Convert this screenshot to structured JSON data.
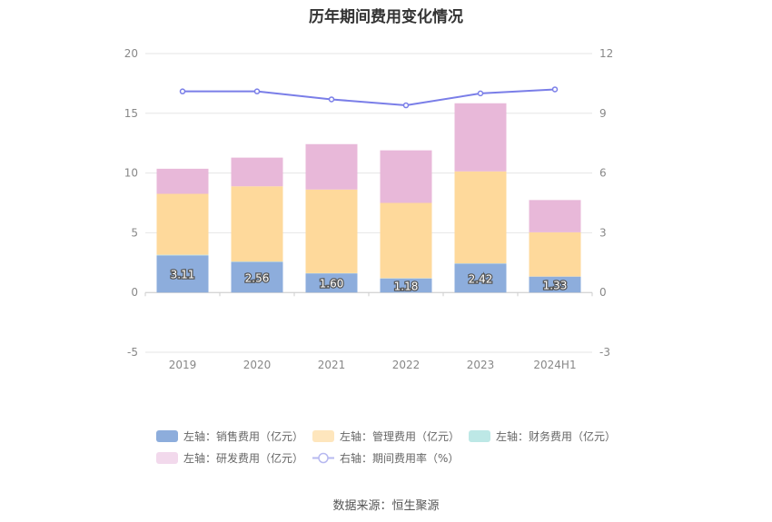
{
  "title": "历年期间费用变化情况",
  "source": "数据来源：恒生聚源",
  "chart_data": {
    "type": "bar",
    "stacked": true,
    "categories": [
      "2019",
      "2020",
      "2021",
      "2022",
      "2023",
      "2024H1"
    ],
    "y_left": {
      "ylim": [
        -5,
        20
      ],
      "ticks": [
        "-5",
        "0",
        "5",
        "10",
        "15",
        "20"
      ]
    },
    "y_right": {
      "ylim": [
        -3,
        12
      ],
      "ticks": [
        "-3",
        "0",
        "3",
        "6",
        "9",
        "12"
      ]
    },
    "grid": true,
    "legend_position": "bottom",
    "series": [
      {
        "name": "左轴：销售费用（亿元）",
        "axis": "left",
        "color": "#8daddc",
        "values": [
          3.11,
          2.56,
          1.6,
          1.18,
          2.42,
          1.33
        ],
        "labels": [
          "3.11",
          "2.56",
          "1.60",
          "1.18",
          "2.42",
          "1.33"
        ]
      },
      {
        "name": "左轴：管理费用（亿元）",
        "axis": "left",
        "color": "#fed99b",
        "values": [
          5.1,
          6.3,
          7.0,
          6.3,
          7.7,
          3.7
        ]
      },
      {
        "name": "左轴：财务费用（亿元）",
        "axis": "left",
        "color": "#bde8e6",
        "values": [
          0.05,
          0.03,
          0.02,
          0.02,
          0.02,
          0.01
        ]
      },
      {
        "name": "左轴：研发费用（亿元）",
        "axis": "left",
        "color": "#e8b8d9",
        "values": [
          2.1,
          2.4,
          3.8,
          4.4,
          5.7,
          2.7
        ]
      },
      {
        "name": "右轴：期间费用率（%）",
        "axis": "right",
        "type": "line",
        "color": "#7a7ee8",
        "values": [
          10.1,
          10.1,
          9.7,
          9.4,
          10.0,
          10.2
        ]
      }
    ]
  }
}
